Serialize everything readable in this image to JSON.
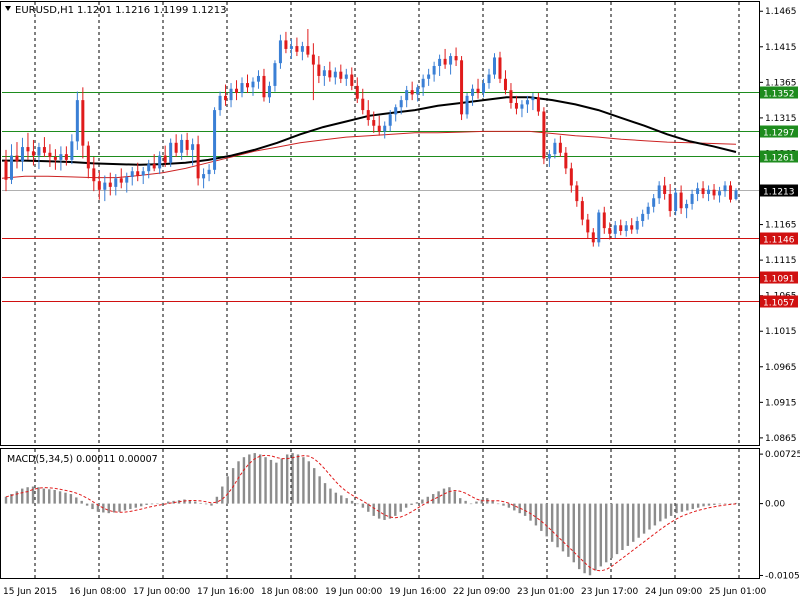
{
  "header": {
    "symbol_label": "EURUSD,H1",
    "ohlc_text": "1.1201 1.1216 1.1199 1.1213"
  },
  "colors": {
    "background": "#ffffff",
    "grid": "#000000",
    "bull_candle": "#3a7fd5",
    "bear_candle": "#e01b1b",
    "ma_fast": "#000000",
    "ma_slow": "#cc2222",
    "resistance_line": "#1e8c1e",
    "support_line": "#d01010",
    "current_line": "#b0b0b0",
    "macd_hist": "#8c8c8c",
    "macd_signal": "#e01b1b"
  },
  "price_axis": {
    "ticks": [
      "1.1465",
      "1.1415",
      "1.1365",
      "1.1315",
      "1.1265",
      "1.1215",
      "1.1165",
      "1.1115",
      "1.1065",
      "1.1015",
      "1.0965",
      "1.0915",
      "1.0865"
    ],
    "range": [
      1.0855,
      1.1478
    ]
  },
  "time_axis": {
    "labels": [
      "15 Jun 2015",
      "16 Jun 08:00",
      "17 Jun 00:00",
      "17 Jun 16:00",
      "18 Jun 08:00",
      "19 Jun 00:00",
      "19 Jun 16:00",
      "22 Jun 09:00",
      "23 Jun 01:00",
      "23 Jun 17:00",
      "24 Jun 09:00",
      "25 Jun 01:00"
    ]
  },
  "levels": [
    {
      "label": "1.1352",
      "value": 1.1352,
      "kind": "resistance"
    },
    {
      "label": "1.1297",
      "value": 1.1297,
      "kind": "resistance"
    },
    {
      "label": "1.1261",
      "value": 1.1261,
      "kind": "resistance"
    },
    {
      "label": "1.1213",
      "value": 1.1213,
      "kind": "current"
    },
    {
      "label": "1.1146",
      "value": 1.1146,
      "kind": "support"
    },
    {
      "label": "1.1091",
      "value": 1.1091,
      "kind": "support"
    },
    {
      "label": "1.1057",
      "value": 1.1057,
      "kind": "support"
    }
  ],
  "macd": {
    "label": "MACD(5,34,5) 0.00011 0.00007",
    "ticks": [
      "0.00725",
      "0.00",
      "-0.01053"
    ],
    "range": [
      -0.0109,
      0.008
    ]
  },
  "chart_data": {
    "type": "candlestick",
    "title": "EURUSD,H1",
    "x_start": "15 Jun 2015",
    "interval": "H1",
    "candles": [
      [
        1.1255,
        1.127,
        1.1212,
        1.1228
      ],
      [
        1.1228,
        1.1278,
        1.1222,
        1.1262
      ],
      [
        1.1262,
        1.1281,
        1.1244,
        1.1254
      ],
      [
        1.1254,
        1.1287,
        1.124,
        1.1274
      ],
      [
        1.1274,
        1.1294,
        1.1256,
        1.1268
      ],
      [
        1.1268,
        1.1284,
        1.1248,
        1.1262
      ],
      [
        1.1262,
        1.128,
        1.1243,
        1.1274
      ],
      [
        1.1274,
        1.1288,
        1.126,
        1.1266
      ],
      [
        1.1266,
        1.1278,
        1.1246,
        1.126
      ],
      [
        1.126,
        1.1271,
        1.1242,
        1.1256
      ],
      [
        1.1256,
        1.1275,
        1.1241,
        1.1264
      ],
      [
        1.1264,
        1.1275,
        1.1248,
        1.1256
      ],
      [
        1.1256,
        1.1292,
        1.125,
        1.1282
      ],
      [
        1.1282,
        1.1352,
        1.127,
        1.134
      ],
      [
        1.134,
        1.1358,
        1.1258,
        1.1276
      ],
      [
        1.1276,
        1.1282,
        1.123,
        1.1244
      ],
      [
        1.1244,
        1.126,
        1.1212,
        1.1226
      ],
      [
        1.1226,
        1.124,
        1.12,
        1.1214
      ],
      [
        1.1214,
        1.1234,
        1.1198,
        1.1224
      ],
      [
        1.1224,
        1.1238,
        1.1206,
        1.1218
      ],
      [
        1.1218,
        1.1236,
        1.1206,
        1.123
      ],
      [
        1.123,
        1.1244,
        1.1216,
        1.1224
      ],
      [
        1.1224,
        1.1238,
        1.121,
        1.1232
      ],
      [
        1.1232,
        1.1246,
        1.122,
        1.124
      ],
      [
        1.124,
        1.1252,
        1.1226,
        1.1234
      ],
      [
        1.1234,
        1.1246,
        1.1222,
        1.124
      ],
      [
        1.124,
        1.1256,
        1.123,
        1.125
      ],
      [
        1.125,
        1.1264,
        1.124,
        1.1244
      ],
      [
        1.1244,
        1.1268,
        1.1236,
        1.1262
      ],
      [
        1.1262,
        1.1276,
        1.1246,
        1.1252
      ],
      [
        1.1252,
        1.1286,
        1.1246,
        1.128
      ],
      [
        1.128,
        1.1292,
        1.126,
        1.1266
      ],
      [
        1.1266,
        1.1292,
        1.1256,
        1.1284
      ],
      [
        1.1284,
        1.1294,
        1.1262,
        1.127
      ],
      [
        1.127,
        1.1286,
        1.1248,
        1.1278
      ],
      [
        1.1278,
        1.129,
        1.122,
        1.123
      ],
      [
        1.123,
        1.1244,
        1.1216,
        1.1236
      ],
      [
        1.1236,
        1.125,
        1.1226,
        1.1242
      ],
      [
        1.1242,
        1.133,
        1.1236,
        1.1326
      ],
      [
        1.1326,
        1.1352,
        1.1318,
        1.1346
      ],
      [
        1.1346,
        1.1362,
        1.1332,
        1.134
      ],
      [
        1.134,
        1.1364,
        1.133,
        1.1356
      ],
      [
        1.1356,
        1.1368,
        1.134,
        1.135
      ],
      [
        1.135,
        1.1372,
        1.1344,
        1.1364
      ],
      [
        1.1364,
        1.1376,
        1.135,
        1.1358
      ],
      [
        1.1358,
        1.1372,
        1.1346,
        1.1366
      ],
      [
        1.1366,
        1.1382,
        1.1356,
        1.1374
      ],
      [
        1.1374,
        1.1384,
        1.1338,
        1.1344
      ],
      [
        1.1344,
        1.1366,
        1.1336,
        1.136
      ],
      [
        1.136,
        1.1396,
        1.1352,
        1.1392
      ],
      [
        1.1392,
        1.1432,
        1.1384,
        1.1424
      ],
      [
        1.1424,
        1.1436,
        1.1406,
        1.1412
      ],
      [
        1.1412,
        1.1426,
        1.1398,
        1.1416
      ],
      [
        1.1416,
        1.1428,
        1.1402,
        1.1408
      ],
      [
        1.1408,
        1.1422,
        1.1396,
        1.1416
      ],
      [
        1.1416,
        1.144,
        1.14,
        1.1404
      ],
      [
        1.1404,
        1.142,
        1.134,
        1.139
      ],
      [
        1.139,
        1.1402,
        1.1364,
        1.1374
      ],
      [
        1.1374,
        1.1388,
        1.136,
        1.1382
      ],
      [
        1.1382,
        1.1394,
        1.1366,
        1.1372
      ],
      [
        1.1372,
        1.1386,
        1.1362,
        1.138
      ],
      [
        1.138,
        1.139,
        1.1364,
        1.137
      ],
      [
        1.137,
        1.1384,
        1.136,
        1.1376
      ],
      [
        1.1376,
        1.1386,
        1.1354,
        1.136
      ],
      [
        1.136,
        1.1372,
        1.1336,
        1.1342
      ],
      [
        1.1342,
        1.1356,
        1.132,
        1.1326
      ],
      [
        1.1326,
        1.134,
        1.1304,
        1.1312
      ],
      [
        1.1312,
        1.1324,
        1.1294,
        1.1304
      ],
      [
        1.1304,
        1.1318,
        1.129,
        1.1296
      ],
      [
        1.1296,
        1.131,
        1.1286,
        1.1304
      ],
      [
        1.1304,
        1.1326,
        1.1296,
        1.132
      ],
      [
        1.132,
        1.1334,
        1.131,
        1.133
      ],
      [
        1.133,
        1.1346,
        1.132,
        1.134
      ],
      [
        1.134,
        1.136,
        1.133,
        1.1354
      ],
      [
        1.1354,
        1.1366,
        1.134,
        1.1348
      ],
      [
        1.1348,
        1.1362,
        1.1338,
        1.1358
      ],
      [
        1.1358,
        1.1376,
        1.1346,
        1.137
      ],
      [
        1.137,
        1.1384,
        1.136,
        1.1376
      ],
      [
        1.1376,
        1.1394,
        1.1366,
        1.1388
      ],
      [
        1.1388,
        1.1404,
        1.1374,
        1.1398
      ],
      [
        1.1398,
        1.1412,
        1.1384,
        1.139
      ],
      [
        1.139,
        1.1406,
        1.1376,
        1.1402
      ],
      [
        1.1402,
        1.1414,
        1.1388,
        1.1396
      ],
      [
        1.1396,
        1.1402,
        1.1312,
        1.132
      ],
      [
        1.132,
        1.135,
        1.1314,
        1.1346
      ],
      [
        1.1346,
        1.1362,
        1.1332,
        1.1356
      ],
      [
        1.1356,
        1.137,
        1.1342,
        1.135
      ],
      [
        1.135,
        1.137,
        1.1344,
        1.1364
      ],
      [
        1.1364,
        1.1384,
        1.1356,
        1.1376
      ],
      [
        1.1376,
        1.1406,
        1.137,
        1.14
      ],
      [
        1.14,
        1.1408,
        1.1364,
        1.137
      ],
      [
        1.137,
        1.1382,
        1.1348,
        1.1354
      ],
      [
        1.1354,
        1.1364,
        1.1328,
        1.1336
      ],
      [
        1.1336,
        1.1346,
        1.132,
        1.1328
      ],
      [
        1.1328,
        1.134,
        1.1316,
        1.1334
      ],
      [
        1.1334,
        1.1346,
        1.1322,
        1.134
      ],
      [
        1.134,
        1.135,
        1.1326,
        1.1344
      ],
      [
        1.1344,
        1.135,
        1.1318,
        1.1324
      ],
      [
        1.1324,
        1.133,
        1.125,
        1.1258
      ],
      [
        1.1258,
        1.127,
        1.1246,
        1.1264
      ],
      [
        1.1264,
        1.1286,
        1.1258,
        1.128
      ],
      [
        1.128,
        1.129,
        1.126,
        1.1266
      ],
      [
        1.1266,
        1.1274,
        1.1236,
        1.1244
      ],
      [
        1.1244,
        1.1252,
        1.121,
        1.122
      ],
      [
        1.122,
        1.1226,
        1.119,
        1.1198
      ],
      [
        1.1198,
        1.1204,
        1.1164,
        1.1172
      ],
      [
        1.1172,
        1.118,
        1.1146,
        1.1154
      ],
      [
        1.1154,
        1.116,
        1.1134,
        1.114
      ],
      [
        1.114,
        1.1186,
        1.1134,
        1.1182
      ],
      [
        1.1182,
        1.119,
        1.1152,
        1.116
      ],
      [
        1.116,
        1.1168,
        1.1144,
        1.1152
      ],
      [
        1.1152,
        1.117,
        1.1146,
        1.1164
      ],
      [
        1.1164,
        1.1172,
        1.115,
        1.1156
      ],
      [
        1.1156,
        1.117,
        1.1148,
        1.1164
      ],
      [
        1.1164,
        1.1174,
        1.1152,
        1.1158
      ],
      [
        1.1158,
        1.1176,
        1.1152,
        1.117
      ],
      [
        1.117,
        1.1186,
        1.1162,
        1.118
      ],
      [
        1.118,
        1.1196,
        1.1172,
        1.119
      ],
      [
        1.119,
        1.1208,
        1.1182,
        1.1202
      ],
      [
        1.1202,
        1.1226,
        1.1194,
        1.122
      ],
      [
        1.122,
        1.1232,
        1.12,
        1.1208
      ],
      [
        1.1208,
        1.1222,
        1.1176,
        1.1184
      ],
      [
        1.1184,
        1.1216,
        1.1178,
        1.121
      ],
      [
        1.121,
        1.122,
        1.118,
        1.1188
      ],
      [
        1.1188,
        1.12,
        1.1174,
        1.1194
      ],
      [
        1.1194,
        1.1214,
        1.1186,
        1.1208
      ],
      [
        1.1208,
        1.1224,
        1.1198,
        1.1216
      ],
      [
        1.1216,
        1.1226,
        1.1202,
        1.1208
      ],
      [
        1.1208,
        1.122,
        1.1198,
        1.1214
      ],
      [
        1.1214,
        1.1222,
        1.12,
        1.1206
      ],
      [
        1.1206,
        1.1218,
        1.1196,
        1.1212
      ],
      [
        1.1212,
        1.1226,
        1.1204,
        1.122
      ],
      [
        1.122,
        1.1226,
        1.1196,
        1.12
      ],
      [
        1.1201,
        1.1216,
        1.1199,
        1.1213
      ]
    ],
    "ma_fast_values": [
      1.1255,
      1.1255,
      1.1254,
      1.1253,
      1.1251,
      1.125,
      1.1249,
      1.125,
      1.1252,
      1.1256,
      1.1262,
      1.127,
      1.128,
      1.1292,
      1.1302,
      1.131,
      1.1318,
      1.1322,
      1.1326,
      1.1332,
      1.1336,
      1.134,
      1.1344,
      1.1344,
      1.134,
      1.1334,
      1.1326,
      1.1315,
      1.1304,
      1.1292,
      1.1282,
      1.1275,
      1.1267
    ],
    "ma_slow_values": [
      1.123,
      1.1233,
      1.1233,
      1.1232,
      1.1231,
      1.1231,
      1.1234,
      1.1238,
      1.1244,
      1.1252,
      1.126,
      1.1268,
      1.1274,
      1.128,
      1.1284,
      1.1288,
      1.129,
      1.1292,
      1.1294,
      1.1294,
      1.1295,
      1.1296,
      1.1296,
      1.1296,
      1.1293,
      1.129,
      1.1288,
      1.1285,
      1.1283,
      1.1281,
      1.128,
      1.1279,
      1.1278
    ],
    "macd_histogram": [
      0.001,
      0.0014,
      0.0018,
      0.0022,
      0.0024,
      0.0025,
      0.0024,
      0.0022,
      0.0021,
      0.002,
      0.0018,
      0.0016,
      0.0014,
      0.0009,
      0.0004,
      -0.0003,
      -0.0008,
      -0.0012,
      -0.0013,
      -0.0014,
      -0.0013,
      -0.0012,
      -0.001,
      -0.0008,
      -0.0006,
      -0.0004,
      -0.0002,
      -0.0001,
      0.0,
      0.0001,
      0.0003,
      0.0004,
      0.0005,
      0.0006,
      0.0005,
      0.0003,
      0.0001,
      -0.0001,
      -0.0003,
      0.001,
      0.0025,
      0.004,
      0.0052,
      0.0062,
      0.0068,
      0.0072,
      0.0074,
      0.0072,
      0.0068,
      0.0064,
      0.006,
      0.0066,
      0.0072,
      0.0074,
      0.0072,
      0.0068,
      0.0062,
      0.0052,
      0.004,
      0.003,
      0.0022,
      0.0016,
      0.0012,
      0.0008,
      0.0004,
      0.0,
      -0.0006,
      -0.0012,
      -0.0018,
      -0.0022,
      -0.0024,
      -0.0022,
      -0.0018,
      -0.0012,
      -0.0006,
      -0.0002,
      0.0002,
      0.0006,
      0.001,
      0.0014,
      0.0018,
      0.0022,
      0.0024,
      0.0018,
      0.0008,
      0.0004,
      0.0,
      0.0003,
      0.0006,
      0.0008,
      0.0004,
      0.0,
      -0.0003,
      -0.0006,
      -0.001,
      -0.0014,
      -0.0018,
      -0.0025,
      -0.0032,
      -0.004,
      -0.0048,
      -0.0056,
      -0.0064,
      -0.007,
      -0.0078,
      -0.0086,
      -0.0096,
      -0.0102,
      -0.0105,
      -0.0098,
      -0.0092,
      -0.0086,
      -0.008,
      -0.0074,
      -0.0068,
      -0.0062,
      -0.0056,
      -0.005,
      -0.0044,
      -0.0038,
      -0.0032,
      -0.0026,
      -0.0022,
      -0.0018,
      -0.0014,
      -0.0012,
      -0.001,
      -0.0008,
      -0.0006,
      -0.0004,
      -0.0003,
      -0.0002,
      -0.0001,
      0.0,
      0.0,
      0.0001
    ],
    "xlabel": "",
    "ylabel": ""
  }
}
